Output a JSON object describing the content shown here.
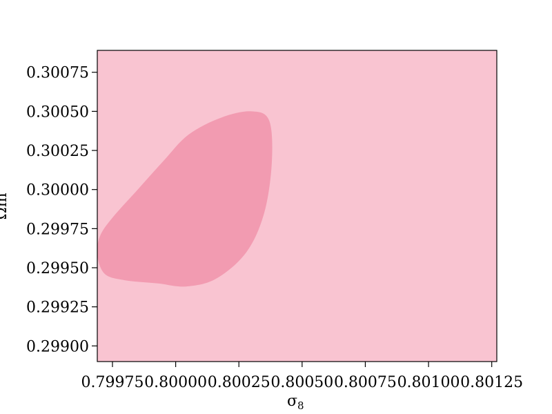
{
  "chart_data": {
    "type": "contour",
    "title": "",
    "xlabel": "σ",
    "xlabel_sub": "8",
    "ylabel": "Ωm",
    "xlim": [
      0.79969,
      0.80127
    ],
    "ylim": [
      0.2989,
      0.30089
    ],
    "xticks": [
      0.79975,
      0.8,
      0.80025,
      0.8005,
      0.80075,
      0.801,
      0.80125
    ],
    "xtick_labels": [
      "0.79975",
      "0.80000",
      "0.80025",
      "0.80050",
      "0.80075",
      "0.80100",
      "0.80125"
    ],
    "yticks": [
      0.299,
      0.29925,
      0.2995,
      0.29975,
      0.3,
      0.30025,
      0.3005,
      0.30075
    ],
    "ytick_labels": [
      "0.29900",
      "0.29925",
      "0.29950",
      "0.29975",
      "0.30000",
      "0.30025",
      "0.30050",
      "0.30075"
    ],
    "grid": false,
    "outer_region_color": "#f9c4d1",
    "inner_region_color": "#f29bb1",
    "inner_contour": [
      [
        0.79969,
        0.29958
      ],
      [
        0.7997,
        0.2997
      ],
      [
        0.79975,
        0.29982
      ],
      [
        0.79985,
        0.3
      ],
      [
        0.79995,
        0.30018
      ],
      [
        0.80005,
        0.30035
      ],
      [
        0.80018,
        0.30046
      ],
      [
        0.8003,
        0.3005
      ],
      [
        0.80037,
        0.30044
      ],
      [
        0.80038,
        0.30017
      ],
      [
        0.80035,
        0.29985
      ],
      [
        0.80028,
        0.2996
      ],
      [
        0.80016,
        0.29943
      ],
      [
        0.80004,
        0.29938
      ],
      [
        0.79993,
        0.2994
      ],
      [
        0.7998,
        0.29942
      ],
      [
        0.79972,
        0.29946
      ]
    ]
  }
}
